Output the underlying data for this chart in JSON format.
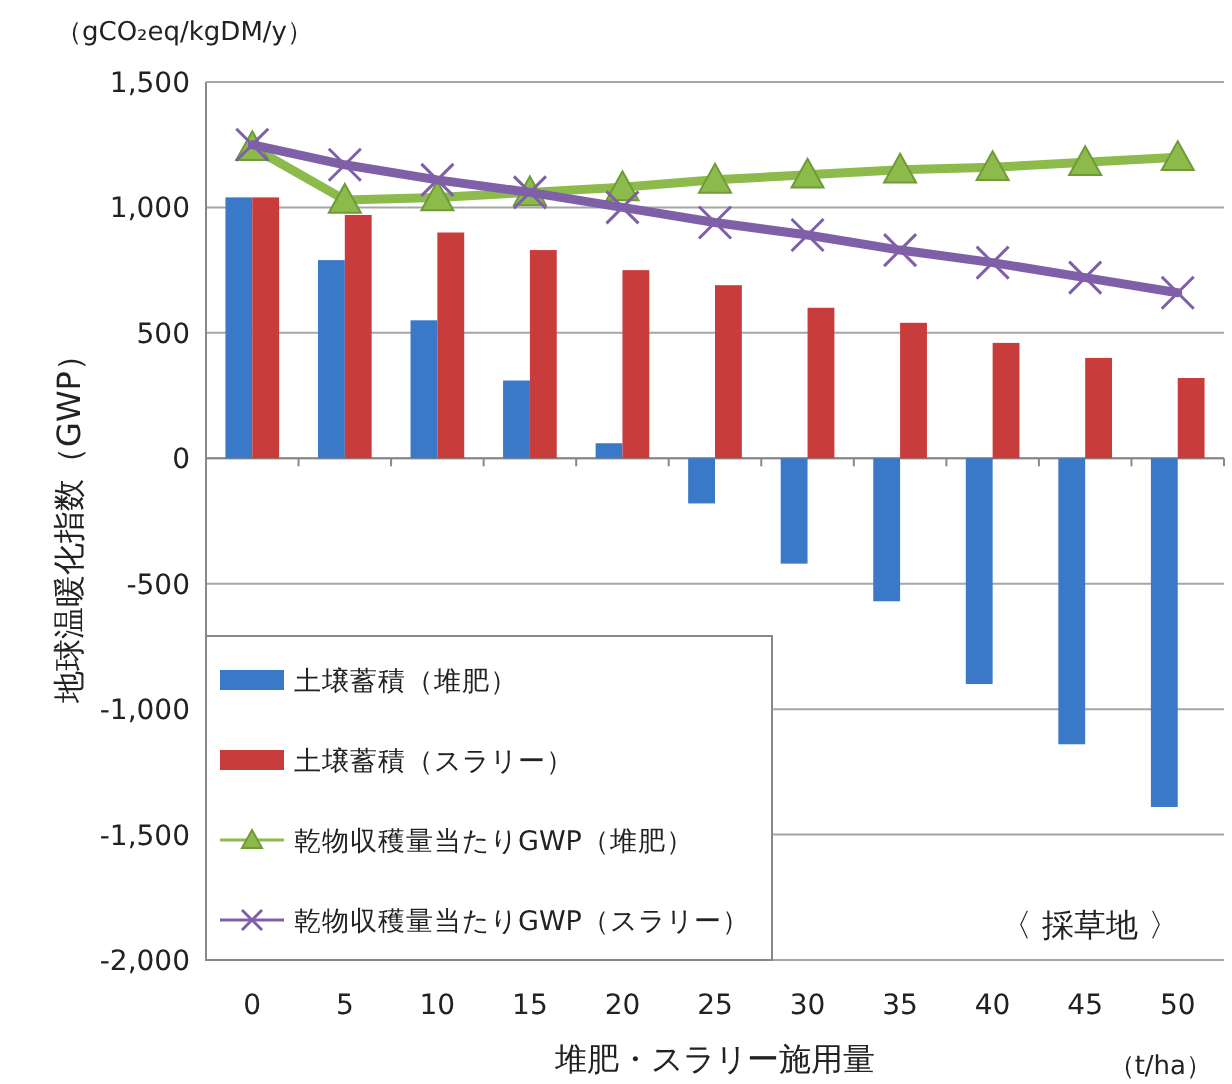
{
  "chart_data": {
    "type": "bar",
    "ylabel": "地球温暖化指数（GWP）",
    "xlabel": "堆肥・スラリー施用量",
    "annotations": [
      "（gCO₂eq/kgDM/y）",
      "（t/ha）",
      "〈 採草地 〉"
    ],
    "categories": [
      "0",
      "5",
      "10",
      "15",
      "20",
      "25",
      "30",
      "35",
      "40",
      "45",
      "50"
    ],
    "series": [
      {
        "name": "土壌蓄積（堆肥）",
        "color": "#3a78c8",
        "values": [
          1040,
          790,
          550,
          310,
          60,
          -180,
          -420,
          -570,
          -900,
          -1140,
          -1390
        ]
      },
      {
        "name": "土壌蓄積（スラリー）",
        "color": "#c83c3c",
        "values": [
          1040,
          970,
          900,
          830,
          750,
          690,
          600,
          540,
          460,
          400,
          320
        ]
      },
      {
        "name": "乾物収穫量当たりGWP（堆肥）",
        "type": "line",
        "marker": "triangle",
        "color": "#8cbb4c",
        "values": [
          1240,
          1030,
          1040,
          1060,
          1080,
          1110,
          1130,
          1150,
          1160,
          1180,
          1200
        ]
      },
      {
        "name": "乾物収穫量当たりGWP（スラリー）",
        "type": "line",
        "marker": "cross",
        "color": "#7f60a8",
        "values": [
          1250,
          1170,
          1110,
          1060,
          1000,
          940,
          890,
          830,
          780,
          720,
          660
        ]
      }
    ],
    "ylim": [
      -2000,
      1500
    ],
    "yticks": [
      {
        "value": -2000,
        "label": "-2,000"
      },
      {
        "value": -1500,
        "label": "-1,500"
      },
      {
        "value": -1000,
        "label": "-1,000"
      },
      -500,
      0,
      500,
      {
        "value": 1000,
        "label": "1,000"
      },
      {
        "value": 1500,
        "label": "1,500"
      }
    ],
    "grid": "y",
    "legend": "bottom left"
  }
}
